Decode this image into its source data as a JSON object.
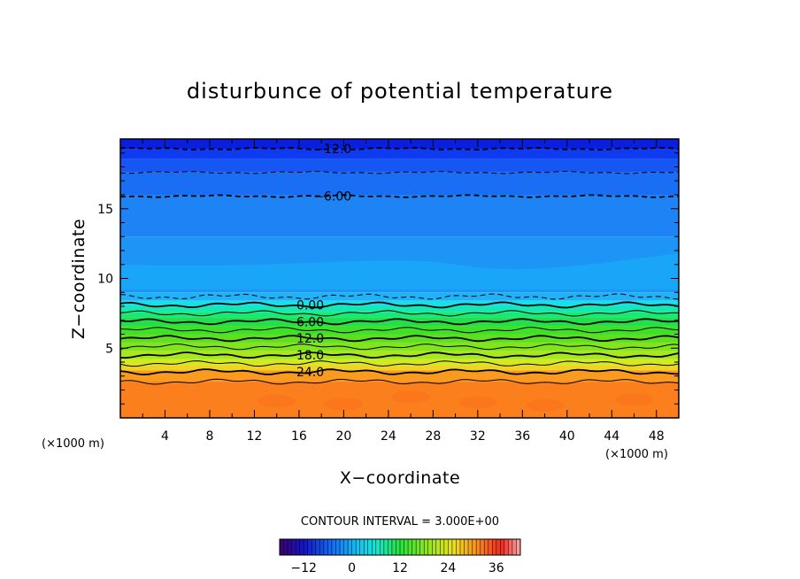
{
  "chart_data": {
    "type": "contour",
    "title": "disturbunce of potential temperature",
    "xlabel": "X−coordinate",
    "ylabel": "Z−coordinate",
    "x_unit_left": "(×1000 m)",
    "x_unit_right": "(×1000 m)",
    "xlim": [
      0,
      50
    ],
    "ylim": [
      0,
      20
    ],
    "xticks": [
      4,
      8,
      12,
      16,
      20,
      24,
      28,
      32,
      36,
      40,
      44,
      48
    ],
    "yticks": [
      5,
      10,
      15
    ],
    "contour_interval_text": "CONTOUR INTERVAL = 3.000E+00",
    "contour_labels": [
      {
        "text": "−12.0",
        "x": 19,
        "z": 19.3
      },
      {
        "text": "−6.00",
        "x": 19,
        "z": 15.9
      },
      {
        "text": "0.00",
        "x": 17,
        "z": 8.1
      },
      {
        "text": "6.00",
        "x": 17,
        "z": 6.9
      },
      {
        "text": "12.0",
        "x": 17,
        "z": 5.7
      },
      {
        "text": "18.0",
        "x": 17,
        "z": 4.5
      },
      {
        "text": "24.0",
        "x": 17,
        "z": 3.3
      }
    ],
    "field_bands": [
      {
        "z0": 19.3,
        "z1": 20.0,
        "color": "#0a1ee0"
      },
      {
        "z0": 18.6,
        "z1": 19.3,
        "color": "#0f3bf0"
      },
      {
        "z0": 17.6,
        "z1": 18.6,
        "color": "#1656f2"
      },
      {
        "z0": 16.0,
        "z1": 17.6,
        "color": "#1a6ef4"
      },
      {
        "z0": 13.0,
        "z1": 16.0,
        "color": "#1e84f5"
      },
      {
        "z0": 9.0,
        "z1": 13.0,
        "color": "#1d95f7"
      },
      {
        "z0": 8.4,
        "z1": 9.0,
        "color": "#1fb2f8"
      },
      {
        "z0": 8.0,
        "z1": 8.4,
        "color": "#17e0e8"
      },
      {
        "z0": 7.6,
        "z1": 8.0,
        "color": "#15e8b0"
      },
      {
        "z0": 7.2,
        "z1": 7.6,
        "color": "#18e878"
      },
      {
        "z0": 6.6,
        "z1": 7.2,
        "color": "#22e04c"
      },
      {
        "z0": 6.0,
        "z1": 6.6,
        "color": "#3ee02a"
      },
      {
        "z0": 5.4,
        "z1": 6.0,
        "color": "#5ee020"
      },
      {
        "z0": 4.8,
        "z1": 5.4,
        "color": "#82e41c"
      },
      {
        "z0": 4.2,
        "z1": 4.8,
        "color": "#a8e81c"
      },
      {
        "z0": 3.8,
        "z1": 4.2,
        "color": "#d2ea20"
      },
      {
        "z0": 3.4,
        "z1": 3.8,
        "color": "#f0d424"
      },
      {
        "z0": 2.6,
        "z1": 3.4,
        "color": "#fa9a1e"
      },
      {
        "z0": 0.0,
        "z1": 2.6,
        "color": "#fb7f1d"
      }
    ],
    "contour_lines": [
      {
        "z": 19.3,
        "style": "dashed",
        "width": 1.8
      },
      {
        "z": 17.6,
        "style": "dashed",
        "width": 1.0
      },
      {
        "z": 15.9,
        "style": "dashed",
        "width": 1.8
      },
      {
        "z": 8.7,
        "style": "dashed",
        "width": 1.0
      },
      {
        "z": 8.1,
        "style": "solid",
        "width": 1.8
      },
      {
        "z": 7.5,
        "style": "solid",
        "width": 1.0
      },
      {
        "z": 6.9,
        "style": "solid",
        "width": 1.8
      },
      {
        "z": 6.3,
        "style": "solid",
        "width": 1.0
      },
      {
        "z": 5.7,
        "style": "solid",
        "width": 1.8
      },
      {
        "z": 5.1,
        "style": "solid",
        "width": 1.0
      },
      {
        "z": 4.5,
        "style": "solid",
        "width": 1.8
      },
      {
        "z": 3.9,
        "style": "solid",
        "width": 1.0
      },
      {
        "z": 3.3,
        "style": "solid",
        "width": 1.8
      },
      {
        "z": 2.6,
        "style": "solid",
        "width": 1.0
      }
    ],
    "colorbar": {
      "range": [
        -18,
        42
      ],
      "ticks": [
        -12,
        0,
        12,
        24,
        36
      ],
      "tick_labels": [
        "−12",
        "0",
        "12",
        "24",
        "36"
      ]
    }
  }
}
